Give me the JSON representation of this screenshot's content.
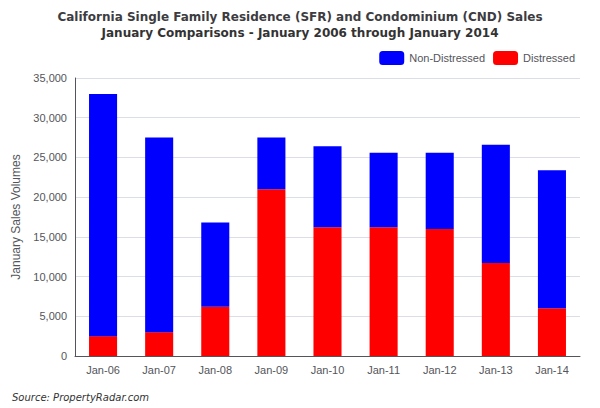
{
  "chart_data": {
    "type": "bar",
    "title": "California Single Family Residence (SFR) and Condominium (CND) Sales",
    "subtitle": "January Comparisons - January 2006 through January 2014",
    "ylabel": "January Sales Volumes",
    "annotation": "Source: PropertyRadar.com",
    "categories": [
      "Jan-06",
      "Jan-07",
      "Jan-08",
      "Jan-09",
      "Jan-10",
      "Jan-11",
      "Jan-12",
      "Jan-13",
      "Jan-14"
    ],
    "series": [
      {
        "name": "Distressed",
        "color": "#FF0000",
        "values": [
          2500,
          3000,
          6200,
          21000,
          16200,
          16200,
          16000,
          11700,
          6000
        ]
      },
      {
        "name": "Non-Distressed",
        "color": "#0000FF",
        "values": [
          30500,
          24500,
          10600,
          6500,
          10200,
          9400,
          9600,
          14900,
          17400
        ]
      }
    ],
    "stacked": true,
    "ylim": [
      0,
      35000
    ],
    "yticks": [
      0,
      {
        "value": 5000,
        "label": "5,000"
      },
      {
        "value": 10000,
        "label": "10,000"
      },
      {
        "value": 15000,
        "label": "15,000"
      },
      {
        "value": 20000,
        "label": "20,000"
      },
      {
        "value": 25000,
        "label": "25,000"
      },
      {
        "value": 30000,
        "label": "30,000"
      },
      {
        "value": 35000,
        "label": "35,000"
      }
    ],
    "grid": true,
    "legend": "upper right"
  }
}
